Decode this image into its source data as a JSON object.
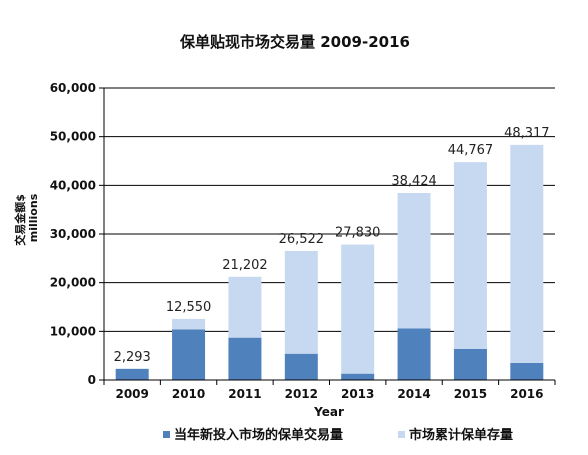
{
  "chart_data": {
    "type": "bar",
    "stacked": true,
    "title": "保单贴现市场交易量 2009-2016",
    "xlabel": "Year",
    "ylabel": "交易金额$",
    "ylabel_unit": "millions",
    "categories": [
      "2009",
      "2010",
      "2011",
      "2012",
      "2013",
      "2014",
      "2015",
      "2016"
    ],
    "series": [
      {
        "name": "当年新投入市场的保单交易量",
        "color": "#4f81bd",
        "values": [
          2293,
          10400,
          8700,
          5400,
          1300,
          10600,
          6400,
          3500
        ]
      },
      {
        "name": "市场累计保单存量",
        "color": "#c6d9f1",
        "values": [
          0,
          2150,
          12502,
          21122,
          26530,
          27824,
          38367,
          44817
        ]
      }
    ],
    "totals": [
      2293,
      12550,
      21202,
      26522,
      27830,
      38424,
      44767,
      48317
    ],
    "total_labels": [
      "2,293",
      "12,550",
      "21,202",
      "26,522",
      "27,830",
      "38,424",
      "44,767",
      "48,317"
    ],
    "ylim": [
      0,
      60000
    ],
    "yticks": [
      0,
      10000,
      20000,
      30000,
      40000,
      50000,
      60000
    ],
    "ytick_labels": [
      "0",
      "10,000",
      "20,000",
      "30,000",
      "40,000",
      "50,000",
      "60,000"
    ],
    "grid": true,
    "legend_position": "bottom"
  }
}
